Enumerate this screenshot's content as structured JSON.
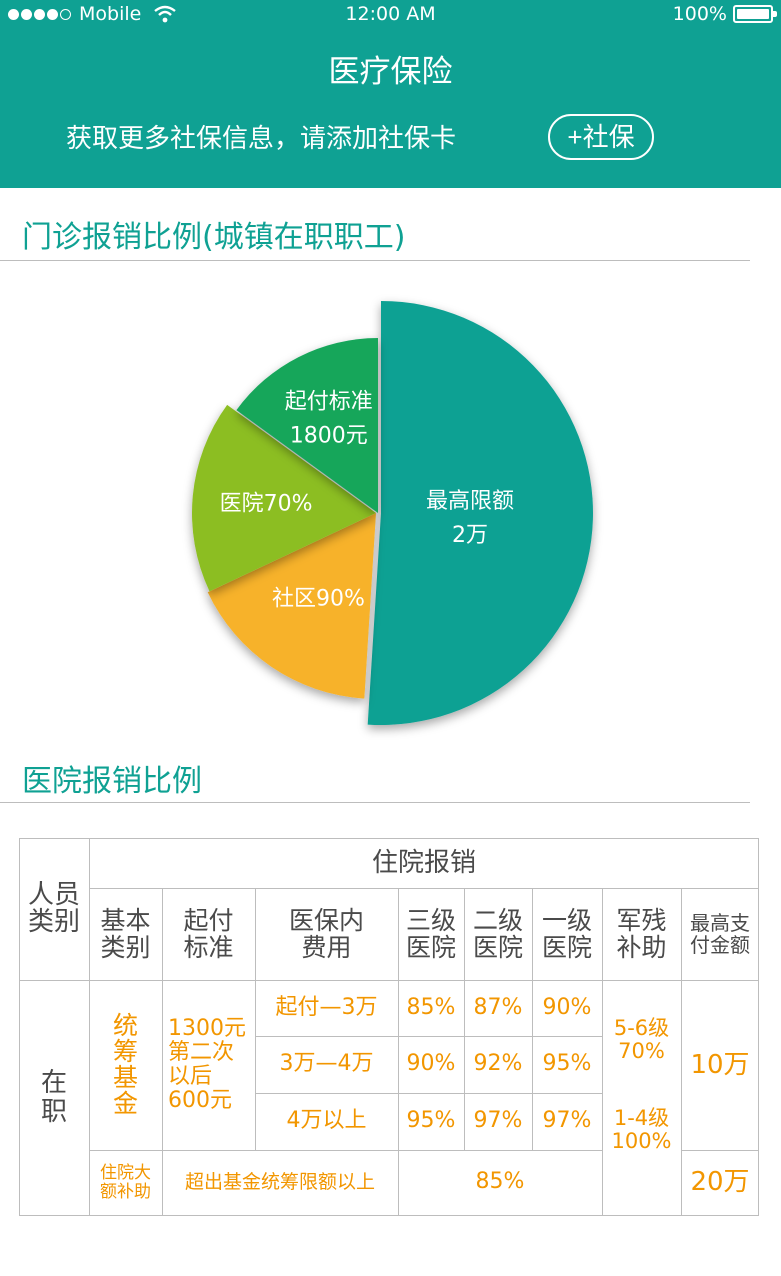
{
  "status_bar": {
    "carrier": "Mobile",
    "time": "12:00 AM",
    "battery": "100%"
  },
  "header": {
    "title": "医疗保险",
    "prompt": "获取更多社保信息，请添加社保卡",
    "add_button": "+社保"
  },
  "section1": {
    "title": "门诊报销比例(城镇在职职工)"
  },
  "chart_data": {
    "type": "pie",
    "title": "",
    "slices": [
      {
        "label_line1": "最高限额",
        "label_line2": "2万",
        "value": 51,
        "color": "#0fa193"
      },
      {
        "label_line1": "社区90%",
        "label_line2": "",
        "value": 17,
        "color": "#f7b22b"
      },
      {
        "label_line1": "医院70%",
        "label_line2": "",
        "value": 17,
        "color": "#8cbe22"
      },
      {
        "label_line1": "起付标准",
        "label_line2": "1800元",
        "value": 15,
        "color": "#15a65a"
      }
    ]
  },
  "section2": {
    "title": "医院报销比例"
  },
  "table": {
    "person_type": "人员\n类别",
    "inpatient": "住院报销",
    "col_basic": "基本\n类别",
    "col_deductible": "起付\n标准",
    "col_covered": "医保内\n费用",
    "col_level3": "三级\n医院",
    "col_level2": "二级\n医院",
    "col_level1": "一级\n医院",
    "col_military": "军残\n补助",
    "col_max": "最高支\n付金额",
    "row_person": "在\n职",
    "fund": "统\n筹\n基\n金",
    "deductible_value": "1300元\n第二次\n以后\n600元",
    "ranges": [
      "起付—3万",
      "3万—4万",
      "4万以上"
    ],
    "level3": [
      "85%",
      "90%",
      "95%"
    ],
    "level2": [
      "87%",
      "92%",
      "97%"
    ],
    "level1": [
      "90%",
      "95%",
      "97%"
    ],
    "military_a": "5-6级\n70%",
    "military_b": "1-4级\n100%",
    "max_a": "10万",
    "subsidy": "住院大\n额补助",
    "beyond": "超出基金统筹限额以上",
    "beyond_rate": "85%",
    "max_b": "20万"
  }
}
